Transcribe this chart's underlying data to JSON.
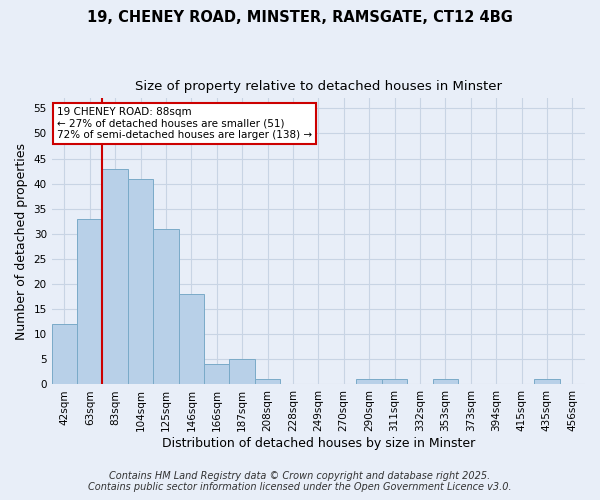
{
  "title_line1": "19, CHENEY ROAD, MINSTER, RAMSGATE, CT12 4BG",
  "title_line2": "Size of property relative to detached houses in Minster",
  "xlabel": "Distribution of detached houses by size in Minster",
  "ylabel": "Number of detached properties",
  "categories": [
    "42sqm",
    "63sqm",
    "83sqm",
    "104sqm",
    "125sqm",
    "146sqm",
    "166sqm",
    "187sqm",
    "208sqm",
    "228sqm",
    "249sqm",
    "270sqm",
    "290sqm",
    "311sqm",
    "332sqm",
    "353sqm",
    "373sqm",
    "394sqm",
    "415sqm",
    "435sqm",
    "456sqm"
  ],
  "values": [
    12,
    33,
    43,
    41,
    31,
    18,
    4,
    5,
    1,
    0,
    0,
    0,
    1,
    1,
    0,
    1,
    0,
    0,
    0,
    1,
    0
  ],
  "bar_color": "#b8d0e8",
  "bar_edge_color": "#7aaac8",
  "grid_color": "#c8d4e4",
  "background_color": "#e8eef8",
  "annotation_box_text": "19 CHENEY ROAD: 88sqm\n← 27% of detached houses are smaller (51)\n72% of semi-detached houses are larger (138) →",
  "annotation_box_color": "#ffffff",
  "annotation_box_edge_color": "#cc0000",
  "vline_color": "#cc0000",
  "vline_xindex": 2,
  "ylim": [
    0,
    57
  ],
  "yticks": [
    0,
    5,
    10,
    15,
    20,
    25,
    30,
    35,
    40,
    45,
    50,
    55
  ],
  "footer_line1": "Contains HM Land Registry data © Crown copyright and database right 2025.",
  "footer_line2": "Contains public sector information licensed under the Open Government Licence v3.0.",
  "title_fontsize": 10.5,
  "subtitle_fontsize": 9.5,
  "label_fontsize": 9,
  "tick_fontsize": 7.5,
  "annotation_fontsize": 7.5,
  "footer_fontsize": 7
}
